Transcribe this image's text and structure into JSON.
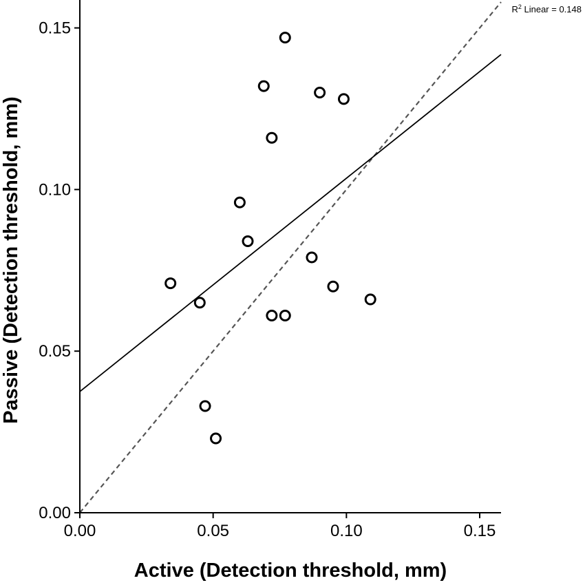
{
  "chart_data": {
    "type": "scatter",
    "title": "",
    "xlabel": "Active (Detection threshold, mm)",
    "ylabel": "Passive (Detection threshold, mm)",
    "xlim": [
      0,
      0.158
    ],
    "ylim": [
      0,
      0.158
    ],
    "xticks": [
      {
        "value": 0.0,
        "label": "0.00"
      },
      {
        "value": 0.05,
        "label": "0.05"
      },
      {
        "value": 0.1,
        "label": "0.10"
      },
      {
        "value": 0.15,
        "label": "0.15"
      }
    ],
    "yticks": [
      {
        "value": 0.0,
        "label": "0.00"
      },
      {
        "value": 0.05,
        "label": "0.05"
      },
      {
        "value": 0.1,
        "label": "0.10"
      },
      {
        "value": 0.15,
        "label": "0.15"
      }
    ],
    "points": [
      {
        "x": 0.077,
        "y": 0.147
      },
      {
        "x": 0.069,
        "y": 0.132
      },
      {
        "x": 0.09,
        "y": 0.13
      },
      {
        "x": 0.099,
        "y": 0.128
      },
      {
        "x": 0.072,
        "y": 0.116
      },
      {
        "x": 0.06,
        "y": 0.096
      },
      {
        "x": 0.063,
        "y": 0.084
      },
      {
        "x": 0.087,
        "y": 0.079
      },
      {
        "x": 0.034,
        "y": 0.071
      },
      {
        "x": 0.095,
        "y": 0.07
      },
      {
        "x": 0.109,
        "y": 0.066
      },
      {
        "x": 0.045,
        "y": 0.065
      },
      {
        "x": 0.072,
        "y": 0.061
      },
      {
        "x": 0.077,
        "y": 0.061
      },
      {
        "x": 0.047,
        "y": 0.033
      },
      {
        "x": 0.051,
        "y": 0.023
      }
    ],
    "fit_line": {
      "intercept": 0.0375,
      "slope": 0.66,
      "label_prefix": "R",
      "label_sup": "2",
      "label_suffix": " Linear = 0.148"
    },
    "identity_line": {
      "intercept": 0,
      "slope": 1,
      "style": "dashed"
    },
    "grid": false
  },
  "colors": {
    "axis": "#000000",
    "fit": "#000000",
    "identity": "#555555",
    "marker": "#000000"
  }
}
